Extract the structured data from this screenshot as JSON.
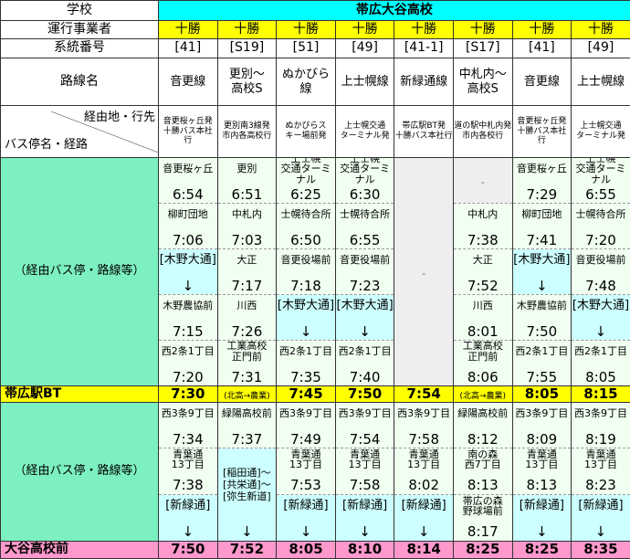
{
  "labels": {
    "school": "学校",
    "operator": "運行事業者",
    "number": "系統番号",
    "route": "路線名",
    "via_dest": "経由地・行先",
    "stop_route": "バス停名・経路",
    "via_stops": "（経由バス停・路線等）",
    "bt": "帯広駅BT",
    "arrive": "大谷高校前"
  },
  "school": "帯広大谷高校",
  "colors": {
    "header": "#00ffff",
    "operator": "#ffff00",
    "bt_row": "#ffff00",
    "arrive_row": "#ff99cc",
    "label_cell": "#7cf0c0",
    "stop_cell": "#f0fff0",
    "via_road_cell": "#ccffff",
    "empty_cell": "#eeeeee"
  },
  "columns": [
    {
      "operator": "十勝",
      "number": "[41]",
      "route": "音更線",
      "via": "音更桜ヶ丘発\n十勝バス本社\n行",
      "upper": [
        {
          "name": "音更桜ヶ丘",
          "time": "6:54"
        },
        {
          "name": "柳町団地",
          "time": "7:06"
        },
        {
          "name": "[木野大通]",
          "time": "↓",
          "type": "c"
        },
        {
          "name": "木野農協前",
          "time": "7:15"
        },
        {
          "name": "西2条1丁目",
          "time": "7:20"
        }
      ],
      "bt": "7:30",
      "lower": [
        {
          "name": "西3条9丁目",
          "time": "7:34"
        },
        {
          "name": "青葉通\n13丁目",
          "time": "7:38"
        },
        {
          "name": "[新緑通]",
          "time": "↓",
          "type": "c"
        }
      ],
      "arrive": "7:50"
    },
    {
      "operator": "十勝",
      "number": "[S19]",
      "route": "更別～\n高校S",
      "via": "更別南3線発\n市内各高校行",
      "upper": [
        {
          "name": "更別",
          "time": "6:51"
        },
        {
          "name": "中札内",
          "time": "7:03"
        },
        {
          "name": "大正",
          "time": "7:17"
        },
        {
          "name": "川西",
          "time": "7:26"
        },
        {
          "name": "工業高校\n正門前",
          "time": "7:31"
        }
      ],
      "bt": "(北高→農業)",
      "bt_small": true,
      "lower": [
        {
          "name": "緑陽高校前",
          "time": "7:37"
        },
        {
          "name": "[稲田通]～\n[共栄通]～\n[弥生新道]",
          "time": "↓",
          "type": "c",
          "span": 2
        }
      ],
      "arrive": "7:52"
    },
    {
      "operator": "十勝",
      "number": "[51]",
      "route": "ぬかびら\n線",
      "via": "ぬかびらス\nキー場前発",
      "upper": [
        {
          "name": "上士幌\n交通ターミナル",
          "time": "6:25"
        },
        {
          "name": "士幌待合所",
          "time": "6:50"
        },
        {
          "name": "音更役場前",
          "time": "7:18"
        },
        {
          "name": "[木野大通]",
          "time": "↓",
          "type": "c"
        },
        {
          "name": "西2条1丁目",
          "time": "7:35"
        }
      ],
      "bt": "7:45",
      "lower": [
        {
          "name": "西3条9丁目",
          "time": "7:49"
        },
        {
          "name": "青葉通\n13丁目",
          "time": "7:53"
        },
        {
          "name": "[新緑通]",
          "time": "↓",
          "type": "c"
        }
      ],
      "arrive": "8:05"
    },
    {
      "operator": "十勝",
      "number": "[49]",
      "route": "上士幌線",
      "via": "上士幌交通\nターミナル発",
      "upper": [
        {
          "name": "上士幌\n交通ターミナル",
          "time": "6:30"
        },
        {
          "name": "士幌待合所",
          "time": "6:55"
        },
        {
          "name": "音更役場前",
          "time": "7:23"
        },
        {
          "name": "[木野大通]",
          "time": "↓",
          "type": "c"
        },
        {
          "name": "西2条1丁目",
          "time": "7:40"
        }
      ],
      "bt": "7:50",
      "lower": [
        {
          "name": "西3条9丁目",
          "time": "7:54"
        },
        {
          "name": "青葉通\n13丁目",
          "time": "7:58"
        },
        {
          "name": "[新緑通]",
          "time": "↓",
          "type": "c"
        }
      ],
      "arrive": "8:10"
    },
    {
      "operator": "十勝",
      "number": "[41-1]",
      "route": "新緑通線",
      "via": "帯広駅BT発\n十勝バス本社行",
      "upper": [
        {
          "name": "-",
          "time": "",
          "type": "gr",
          "span": 5
        }
      ],
      "bt": "7:54",
      "lower": [
        {
          "name": "西3条9丁目",
          "time": "7:58"
        },
        {
          "name": "青葉通\n13丁目",
          "time": "8:02"
        },
        {
          "name": "[新緑通]",
          "time": "↓",
          "type": "c"
        }
      ],
      "arrive": "8:14"
    },
    {
      "operator": "十勝",
      "number": "[S17]",
      "route": "中札内～\n高校S",
      "via": "道の駅中札内発\n市内各校行",
      "upper": [
        {
          "name": "-",
          "time": "",
          "type": "gr"
        },
        {
          "name": "中札内",
          "time": "7:38"
        },
        {
          "name": "大正",
          "time": "7:52"
        },
        {
          "name": "川西",
          "time": "8:01"
        },
        {
          "name": "工業高校\n正門前",
          "time": "8:06"
        }
      ],
      "bt": "(北高→農業)",
      "bt_small": true,
      "lower": [
        {
          "name": "緑陽高校前",
          "time": "8:12"
        },
        {
          "name": "南の森\n西7丁目",
          "time": "8:13"
        },
        {
          "name": "帯広の森\n野球場前",
          "time": "8:17"
        }
      ],
      "arrive": "8:25"
    },
    {
      "operator": "十勝",
      "number": "[41]",
      "route": "音更線",
      "via": "音更桜ヶ丘発\n十勝バス本社\n行",
      "upper": [
        {
          "name": "音更桜ヶ丘",
          "time": "7:29"
        },
        {
          "name": "柳町団地",
          "time": "7:41"
        },
        {
          "name": "[木野大通]",
          "time": "↓",
          "type": "c"
        },
        {
          "name": "木野農協前",
          "time": "7:50"
        },
        {
          "name": "西2条1丁目",
          "time": "7:55"
        }
      ],
      "bt": "8:05",
      "lower": [
        {
          "name": "西3条9丁目",
          "time": "8:09"
        },
        {
          "name": "青葉通\n13丁目",
          "time": "8:13"
        },
        {
          "name": "[新緑通]",
          "time": "↓",
          "type": "c"
        }
      ],
      "arrive": "8:25"
    },
    {
      "operator": "十勝",
      "number": "[49]",
      "route": "上士幌線",
      "via": "上士幌交通\nターミナル発",
      "upper": [
        {
          "name": "上士幌\n交通ターミナル",
          "time": "6:55"
        },
        {
          "name": "士幌待合所",
          "time": "7:20"
        },
        {
          "name": "音更役場前",
          "time": "7:48"
        },
        {
          "name": "[木野大通]",
          "time": "↓",
          "type": "c"
        },
        {
          "name": "西2条1丁目",
          "time": "8:05"
        }
      ],
      "bt": "8:15",
      "lower": [
        {
          "name": "西3条9丁目",
          "time": "8:19"
        },
        {
          "name": "青葉通\n13丁目",
          "time": "8:23"
        },
        {
          "name": "[新緑通]",
          "time": "↓",
          "type": "c"
        }
      ],
      "arrive": "8:35"
    }
  ]
}
